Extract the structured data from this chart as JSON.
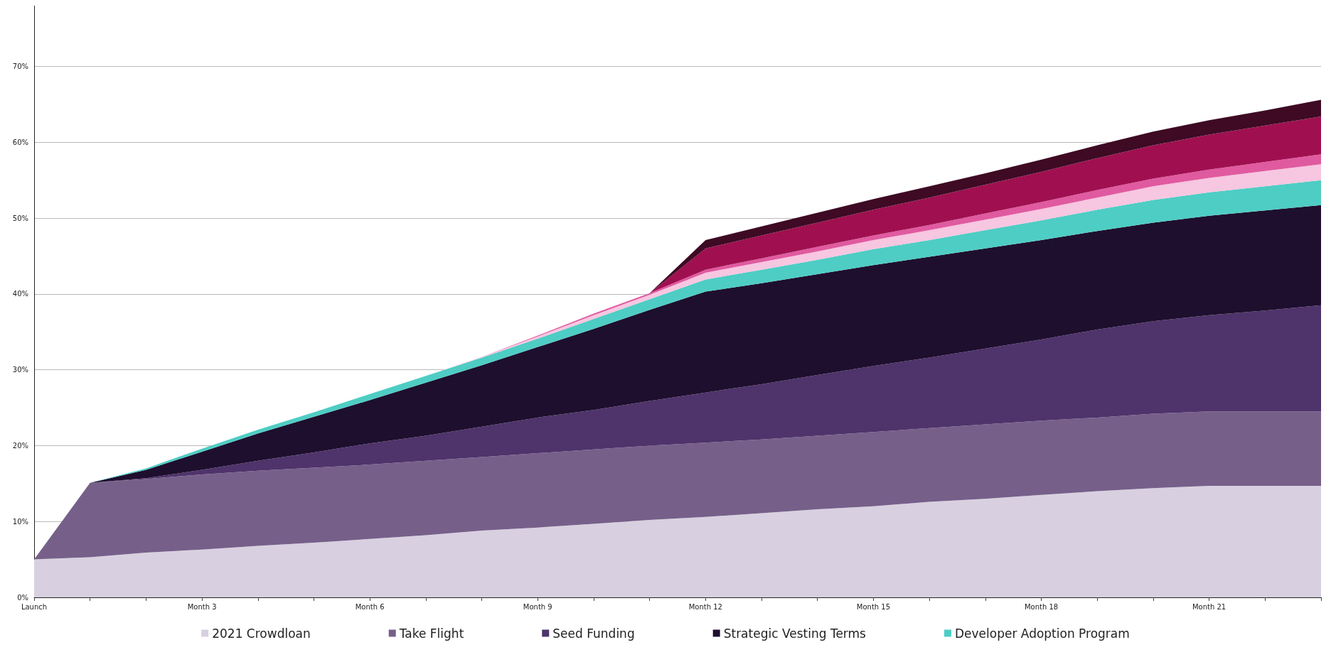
{
  "chart_data": {
    "type": "area",
    "stacked": true,
    "categories": [
      "Launch",
      null,
      null,
      "Month 3",
      null,
      null,
      "Month 6",
      null,
      null,
      "Month 9",
      null,
      null,
      "Month 12",
      null,
      null,
      "Month 15",
      null,
      null,
      "Month 18",
      null,
      null,
      "Month 21",
      null,
      null
    ],
    "series": [
      {
        "name": "2021 Crowdloan",
        "color": "#d8d0e0",
        "values": [
          5,
          5.3,
          5.9,
          6.3,
          6.8,
          7.2,
          7.7,
          8.2,
          8.8,
          9.2,
          9.7,
          10.2,
          10.6,
          11.1,
          11.6,
          12,
          12.6,
          13,
          13.5,
          14,
          14.4,
          14.7,
          14.7,
          14.7
        ]
      },
      {
        "name": "Take Flight",
        "color": "#76608a",
        "values": [
          0,
          9.8,
          9.7,
          9.9,
          9.9,
          9.9,
          9.8,
          9.8,
          9.7,
          9.8,
          9.8,
          9.8,
          9.8,
          9.7,
          9.7,
          9.8,
          9.7,
          9.8,
          9.8,
          9.7,
          9.8,
          9.8,
          9.8,
          9.8
        ]
      },
      {
        "name": "Seed Funding",
        "color": "#4f336b",
        "values": [
          0,
          0,
          0.1,
          0.6,
          1.3,
          2,
          2.8,
          3.3,
          4,
          4.7,
          5.2,
          5.9,
          6.6,
          7.3,
          8,
          8.7,
          9.3,
          10,
          10.7,
          11.6,
          12.2,
          12.7,
          13.3,
          14
        ]
      },
      {
        "name": "Strategic Vesting Terms",
        "color": "#1e0f2e",
        "values": [
          0,
          0,
          1.1,
          2.4,
          3.6,
          4.7,
          5.7,
          7,
          8.1,
          9.3,
          10.7,
          12,
          13.3,
          13.3,
          13.3,
          13.3,
          13.3,
          13.2,
          13.1,
          13,
          13,
          13.1,
          13.2,
          13.2
        ]
      },
      {
        "name": "Developer Adoption Program",
        "color": "#4ecdc4",
        "values": [
          0,
          0,
          0.2,
          0.4,
          0.5,
          0.6,
          0.8,
          0.9,
          1,
          1.1,
          1.3,
          1.4,
          1.6,
          1.8,
          1.9,
          2.1,
          2.2,
          2.4,
          2.6,
          2.8,
          3,
          3.1,
          3.2,
          3.3
        ]
      },
      {
        "color": "#f7c6e0",
        "values": [
          0,
          0,
          0,
          0,
          0,
          0,
          0,
          0,
          0.1,
          0.3,
          0.5,
          0.6,
          0.9,
          1,
          1.1,
          1.2,
          1.3,
          1.4,
          1.5,
          1.6,
          1.8,
          1.9,
          2,
          2.1
        ]
      },
      {
        "color": "#e05aa0",
        "values": [
          0,
          0,
          0,
          0,
          0,
          0,
          0,
          0,
          0,
          0.1,
          0.2,
          0.2,
          0.4,
          0.5,
          0.6,
          0.6,
          0.7,
          0.8,
          0.9,
          1,
          1,
          1.1,
          1.2,
          1.3
        ]
      },
      {
        "color": "#a01050",
        "values": [
          0,
          0,
          0,
          0,
          0,
          0,
          0,
          0,
          0,
          0,
          0,
          0,
          2.8,
          3,
          3.2,
          3.4,
          3.6,
          3.8,
          4,
          4.2,
          4.4,
          4.6,
          4.8,
          5
        ]
      },
      {
        "color": "#3e0a24",
        "values": [
          0,
          0,
          0,
          0,
          0,
          0,
          0,
          0,
          0,
          0,
          0,
          0,
          1.1,
          1.2,
          1.3,
          1.4,
          1.5,
          1.5,
          1.6,
          1.7,
          1.8,
          1.9,
          2,
          2.2
        ]
      }
    ],
    "ylim": [
      0,
      78
    ],
    "yticks": [
      {
        "value": 0,
        "label": "0%"
      },
      {
        "value": 10,
        "label": "10%"
      },
      {
        "value": 20,
        "label": "20%"
      },
      {
        "value": 30,
        "label": "30%"
      },
      {
        "value": 40,
        "label": "40%"
      },
      {
        "value": 50,
        "label": "50%"
      },
      {
        "value": 60,
        "label": "60%"
      },
      {
        "value": 70,
        "label": "70%"
      }
    ],
    "grid": "y",
    "legend": "bottom"
  }
}
